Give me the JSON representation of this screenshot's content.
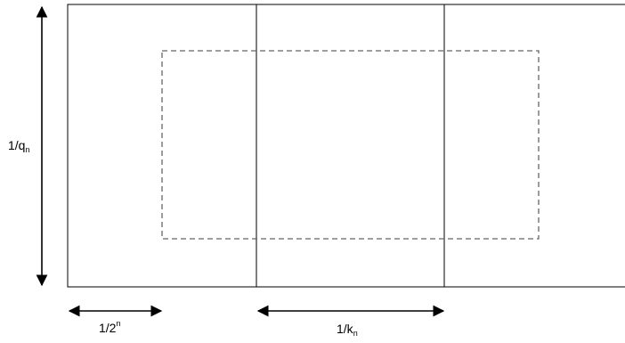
{
  "labels": {
    "vertical": {
      "base": "1/q",
      "sub": "n"
    },
    "horizontal_left": {
      "base": "1/2",
      "sup": "n"
    },
    "horizontal_right": {
      "base": "1/k",
      "sub": "n"
    }
  },
  "colors": {
    "stroke": "#000000",
    "dashed": "#666666",
    "background": "#ffffff"
  }
}
